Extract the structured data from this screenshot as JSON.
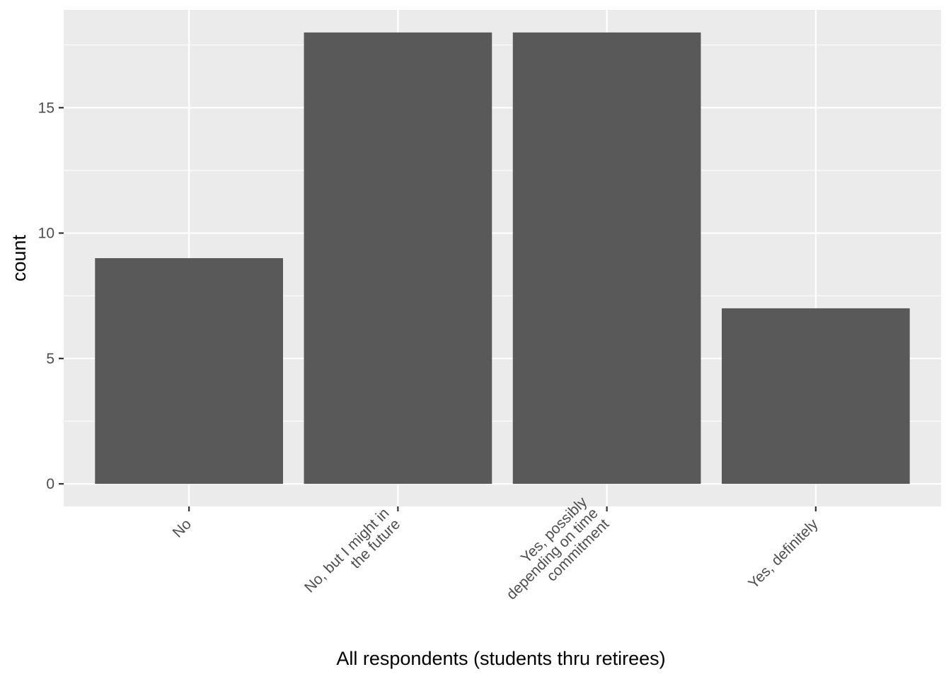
{
  "chart_data": {
    "type": "bar",
    "title": "",
    "xlabel": "All respondents (students thru retirees)",
    "ylabel": "count",
    "categories": [
      [
        "No"
      ],
      [
        "No, but I might in",
        "the future"
      ],
      [
        "Yes, possibly",
        "depending on time",
        "commitment"
      ],
      [
        "Yes, definitely"
      ]
    ],
    "values": [
      9,
      18,
      18,
      7
    ],
    "ylim": [
      -0.9,
      18.9
    ],
    "yticks": [
      0,
      5,
      10,
      15
    ],
    "grid": true,
    "legend": "none",
    "colors": {
      "bar": "#595959",
      "panel": "#ebebeb",
      "grid": "#ffffff",
      "tick": "#333333"
    }
  }
}
